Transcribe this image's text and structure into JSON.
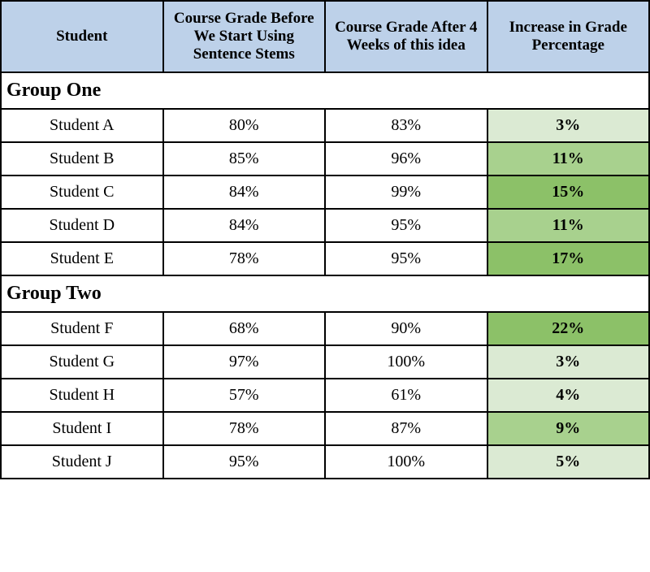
{
  "table": {
    "columns": [
      "Student",
      "Course Grade Before We Start Using Sentence Stems",
      "Course Grade After 4 Weeks of this idea",
      "Increase in Grade Percentage"
    ],
    "column_widths": [
      "25%",
      "25%",
      "25%",
      "25%"
    ],
    "header_bg": "#bdd1e9",
    "border_color": "#000000",
    "groups": [
      {
        "label": "Group One",
        "rows": [
          {
            "student": "Student A",
            "before": "80%",
            "after": "83%",
            "increase": "3%",
            "increase_bg": "#dbead3"
          },
          {
            "student": "Student B",
            "before": "85%",
            "after": "96%",
            "increase": "11%",
            "increase_bg": "#a8d18e"
          },
          {
            "student": "Student C",
            "before": "84%",
            "after": "99%",
            "increase": "15%",
            "increase_bg": "#8cc168"
          },
          {
            "student": "Student D",
            "before": "84%",
            "after": "95%",
            "increase": "11%",
            "increase_bg": "#a8d18e"
          },
          {
            "student": "Student E",
            "before": "78%",
            "after": "95%",
            "increase": "17%",
            "increase_bg": "#8cc168"
          }
        ]
      },
      {
        "label": "Group Two",
        "rows": [
          {
            "student": "Student F",
            "before": "68%",
            "after": "90%",
            "increase": "22%",
            "increase_bg": "#8cc168"
          },
          {
            "student": "Student G",
            "before": "97%",
            "after": "100%",
            "increase": "3%",
            "increase_bg": "#dbead3"
          },
          {
            "student": "Student H",
            "before": "57%",
            "after": "61%",
            "increase": "4%",
            "increase_bg": "#dbead3"
          },
          {
            "student": "Student I",
            "before": "78%",
            "after": "87%",
            "increase": "9%",
            "increase_bg": "#a8d18e"
          },
          {
            "student": "Student J",
            "before": "95%",
            "after": "100%",
            "increase": "5%",
            "increase_bg": "#dbead3"
          }
        ]
      }
    ]
  }
}
